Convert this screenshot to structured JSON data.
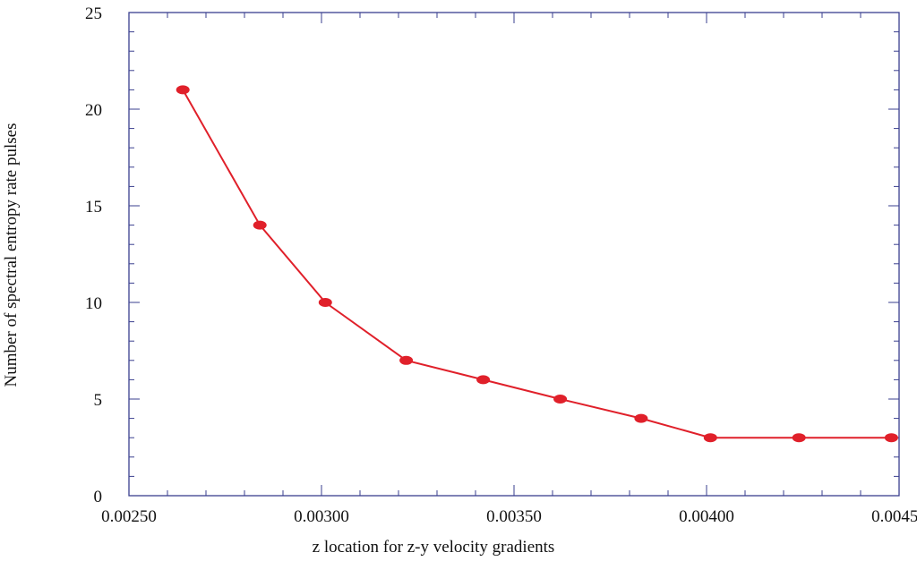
{
  "chart_data": {
    "type": "line",
    "xlabel": "z location for z-y velocity gradients",
    "ylabel": "Number of spectral entropy rate pulses",
    "xlim": [
      0.0025,
      0.0045
    ],
    "ylim": [
      0,
      25
    ],
    "x_ticks": [
      "0.00250",
      "0.00300",
      "0.00350",
      "0.00400",
      "0.00450"
    ],
    "y_ticks": [
      "0",
      "5",
      "10",
      "15",
      "20",
      "25"
    ],
    "grid": false,
    "series": [
      {
        "x": [
          0.00264,
          0.00284,
          0.00301,
          0.00322,
          0.00342,
          0.00362,
          0.00383,
          0.00401,
          0.00424,
          0.00448
        ],
        "y": [
          21,
          14,
          10,
          7,
          6,
          5,
          4,
          3,
          3,
          3
        ],
        "color": "#e0202a"
      }
    ],
    "axis_color": "#3a3f8f"
  }
}
